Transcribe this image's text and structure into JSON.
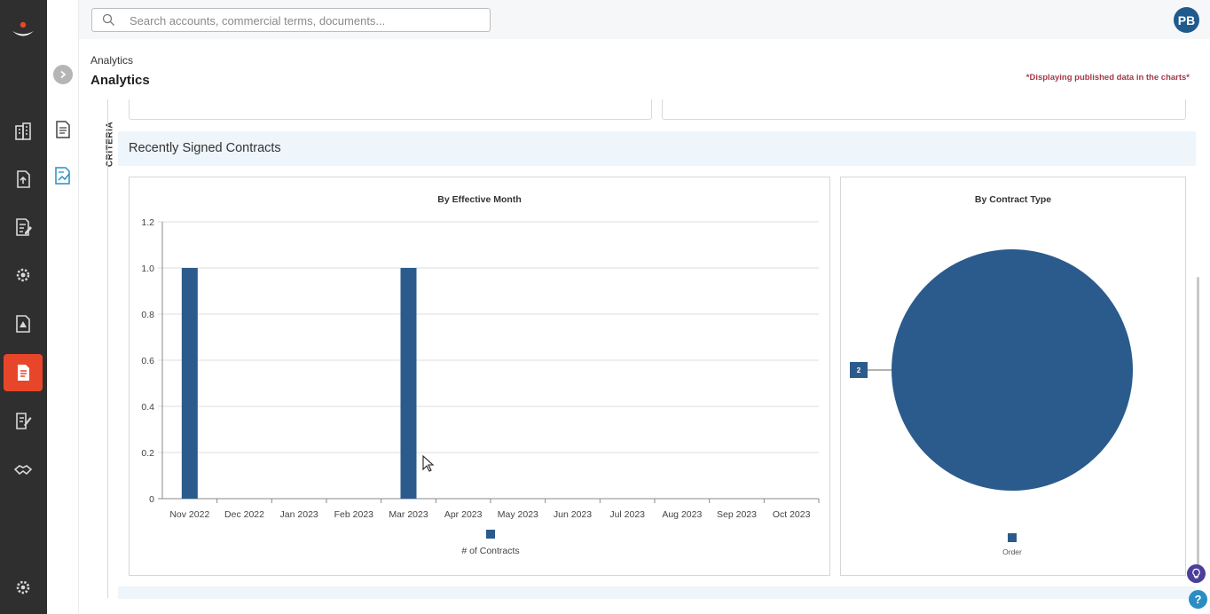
{
  "app": {
    "search": {
      "placeholder": "Search accounts, commercial terms, documents..."
    },
    "user": {
      "initials": "PB"
    }
  },
  "rail": {
    "items": [
      {
        "icon": "buildings-icon"
      },
      {
        "icon": "document-upload-icon"
      },
      {
        "icon": "document-edit-icon"
      },
      {
        "icon": "gear-cluster-icon"
      },
      {
        "icon": "document-alert-icon"
      },
      {
        "icon": "document-active-icon",
        "active": true
      },
      {
        "icon": "document-sign-icon"
      },
      {
        "icon": "handshake-icon"
      },
      {
        "icon": "settings-icon"
      }
    ]
  },
  "page": {
    "breadcrumb": "Analytics",
    "title": "Analytics",
    "notice": "*Displaying published data in the charts*",
    "criteria_label": "CRITERIA",
    "section_title": "Recently Signed Contracts"
  },
  "colors": {
    "accent": "#e8462a",
    "series": "#2a5b8c",
    "notice": "#a33a4a",
    "band": "#eef5fb"
  },
  "chart_data": [
    {
      "type": "bar",
      "title": "By Effective Month",
      "categories": [
        "Nov 2022",
        "Dec 2022",
        "Jan 2023",
        "Feb 2023",
        "Mar 2023",
        "Apr 2023",
        "May 2023",
        "Jun 2023",
        "Jul 2023",
        "Aug 2023",
        "Sep 2023",
        "Oct 2023"
      ],
      "series": [
        {
          "name": "# of Contracts",
          "values": [
            1,
            0,
            0,
            0,
            1,
            0,
            0,
            0,
            0,
            0,
            0,
            0
          ]
        }
      ],
      "ylim": [
        0,
        1.2
      ],
      "yticks": [
        "0",
        "0.2",
        "0.4",
        "0.6",
        "0.8",
        "1.0",
        "1.2"
      ],
      "grid": true,
      "legend": "bottom"
    },
    {
      "type": "pie",
      "title": "By Contract Type",
      "slices": [
        {
          "label": "Order",
          "value": 2,
          "data_label": "2"
        }
      ],
      "legend": "bottom"
    }
  ]
}
